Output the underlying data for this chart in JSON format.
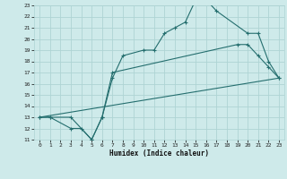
{
  "xlabel": "Humidex (Indice chaleur)",
  "background_color": "#ceeaea",
  "grid_color": "#aed4d4",
  "line_color": "#246e6e",
  "line1_x": [
    0,
    1,
    3,
    5,
    6,
    7,
    8,
    10,
    11,
    12,
    13,
    14,
    15,
    16,
    17,
    20,
    21,
    22,
    23
  ],
  "line1_y": [
    13,
    13,
    13,
    11,
    13,
    16.5,
    18.5,
    19,
    19,
    20.5,
    21,
    21.5,
    23.5,
    23.5,
    22.5,
    20.5,
    20.5,
    18,
    16.5
  ],
  "line2_x": [
    0,
    1,
    3,
    4,
    5,
    6,
    7,
    19,
    20,
    21,
    22,
    23
  ],
  "line2_y": [
    13,
    13,
    12,
    12,
    11,
    13,
    17,
    19.5,
    19.5,
    18.5,
    17.5,
    16.5
  ],
  "line3_x": [
    0,
    23
  ],
  "line3_y": [
    13,
    16.5
  ],
  "xlim": [
    -0.5,
    23.5
  ],
  "ylim": [
    11,
    23
  ],
  "xticks": [
    0,
    1,
    2,
    3,
    4,
    5,
    6,
    7,
    8,
    9,
    10,
    11,
    12,
    13,
    14,
    15,
    16,
    17,
    18,
    19,
    20,
    21,
    22,
    23
  ],
  "yticks": [
    11,
    12,
    13,
    14,
    15,
    16,
    17,
    18,
    19,
    20,
    21,
    22,
    23
  ]
}
